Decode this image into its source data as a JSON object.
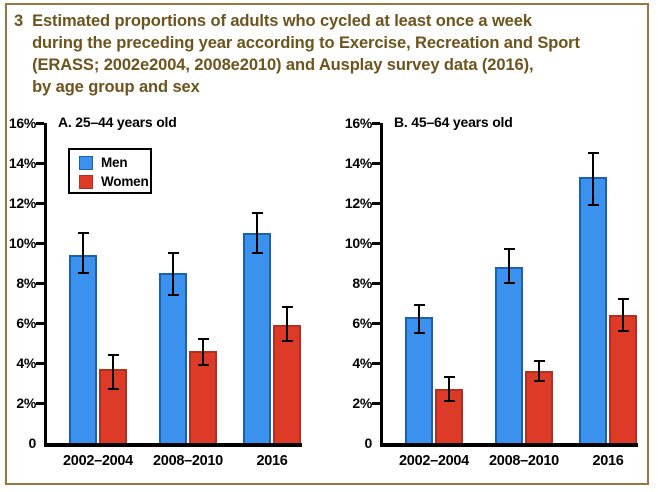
{
  "figure": {
    "number": "3",
    "title_lines": [
      "Estimated proportions of adults who cycled at least once a week",
      "during the preceding year according to Exercise, Recreation and Sport",
      "(ERASS; 2002e2004, 2008e2010) and Ausplay survey data (2016),",
      "by age group and sex"
    ],
    "title_color": "#6e531c",
    "frame_border_color": "#97763f"
  },
  "legend": {
    "location": "upper-left of chart A",
    "items": [
      {
        "label": "Men",
        "color": "#3a91ee",
        "border": "#1d60ae"
      },
      {
        "label": "Women",
        "color": "#dd3a28",
        "border": "#b3301e"
      }
    ]
  },
  "chart_data": [
    {
      "type": "bar",
      "title": "A. 25–44 years old",
      "categories": [
        "2002–2004",
        "2008–2010",
        "2016"
      ],
      "series": [
        {
          "name": "Men",
          "color": "#3a91ee",
          "edge_color": "#1d60ae",
          "values": [
            9.4,
            8.5,
            10.5
          ],
          "error_low": [
            8.5,
            7.4,
            9.5
          ],
          "error_high": [
            10.5,
            9.5,
            11.5
          ]
        },
        {
          "name": "Women",
          "color": "#dd3a28",
          "edge_color": "#b3301e",
          "values": [
            3.7,
            4.6,
            5.9
          ],
          "error_low": [
            2.7,
            3.9,
            5.1
          ],
          "error_high": [
            4.4,
            5.2,
            6.8
          ]
        }
      ],
      "xlabel": "",
      "ylabel": "",
      "ylim": [
        0,
        16
      ],
      "ytick_step": 2,
      "ytick_labels": [
        "0",
        "2%",
        "4%",
        "6%",
        "8%",
        "10%",
        "12%",
        "14%",
        "16%"
      ],
      "grid": false,
      "error_bars": true,
      "legend_shown": true
    },
    {
      "type": "bar",
      "title": "B. 45–64 years old",
      "categories": [
        "2002–2004",
        "2008–2010",
        "2016"
      ],
      "series": [
        {
          "name": "Men",
          "color": "#3a91ee",
          "edge_color": "#1d60ae",
          "values": [
            6.3,
            8.8,
            13.3
          ],
          "error_low": [
            5.5,
            8.0,
            11.9
          ],
          "error_high": [
            6.9,
            9.7,
            14.5
          ]
        },
        {
          "name": "Women",
          "color": "#dd3a28",
          "edge_color": "#b3301e",
          "values": [
            2.7,
            3.6,
            6.4
          ],
          "error_low": [
            2.1,
            3.1,
            5.6
          ],
          "error_high": [
            3.3,
            4.1,
            7.2
          ]
        }
      ],
      "xlabel": "",
      "ylabel": "",
      "ylim": [
        0,
        16
      ],
      "ytick_step": 2,
      "ytick_labels": [
        "0",
        "2%",
        "4%",
        "6%",
        "8%",
        "10%",
        "12%",
        "14%",
        "16%"
      ],
      "grid": false,
      "error_bars": true,
      "legend_shown": false
    }
  ]
}
